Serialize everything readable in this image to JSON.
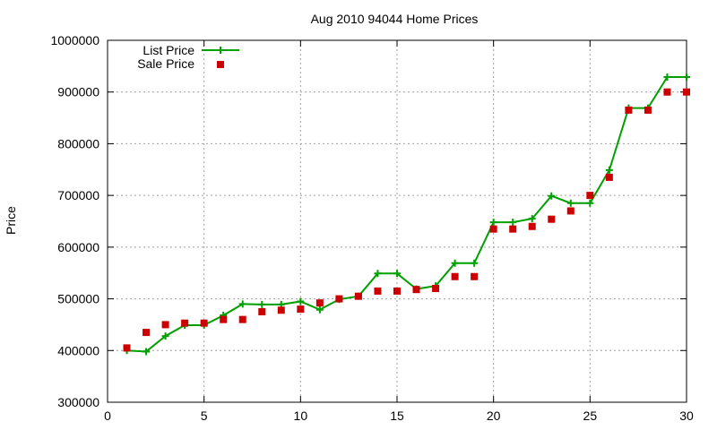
{
  "chart_data": {
    "type": "line",
    "title": "Aug 2010 94044 Home Prices",
    "xlabel": "",
    "ylabel": "Price",
    "xlim": [
      0,
      30
    ],
    "ylim": [
      300000,
      1000000
    ],
    "x_ticks": [
      0,
      5,
      10,
      15,
      20,
      25,
      30
    ],
    "y_ticks": [
      300000,
      400000,
      500000,
      600000,
      700000,
      800000,
      900000,
      1000000
    ],
    "grid": true,
    "legend_position": "top-left",
    "series": [
      {
        "name": "List Price",
        "style": "line-with-plus-markers",
        "color": "#00a000",
        "x": [
          1,
          2,
          3,
          4,
          5,
          6,
          7,
          8,
          9,
          10,
          11,
          12,
          13,
          14,
          15,
          16,
          17,
          18,
          19,
          20,
          21,
          22,
          23,
          24,
          25,
          26,
          27,
          28,
          29,
          30
        ],
        "values": [
          400000,
          398000,
          428000,
          449000,
          449000,
          468000,
          490000,
          489000,
          489000,
          495000,
          479000,
          499000,
          505000,
          549000,
          549000,
          519000,
          525000,
          569000,
          569000,
          648000,
          648000,
          655000,
          699000,
          685000,
          685000,
          749000,
          869000,
          869000,
          929000,
          929000
        ]
      },
      {
        "name": "Sale Price",
        "style": "square-markers",
        "color": "#cc0000",
        "x": [
          1,
          2,
          3,
          4,
          5,
          6,
          7,
          8,
          9,
          10,
          11,
          12,
          13,
          14,
          15,
          16,
          17,
          18,
          19,
          20,
          21,
          22,
          23,
          24,
          25,
          26,
          27,
          28,
          29,
          30
        ],
        "values": [
          405000,
          435000,
          450000,
          453000,
          453000,
          460000,
          460000,
          475000,
          478000,
          480000,
          492000,
          500000,
          505000,
          515000,
          515000,
          518000,
          520000,
          543000,
          543000,
          635000,
          635000,
          640000,
          654000,
          670000,
          700000,
          735000,
          865000,
          865000,
          900000,
          900000
        ]
      }
    ]
  }
}
